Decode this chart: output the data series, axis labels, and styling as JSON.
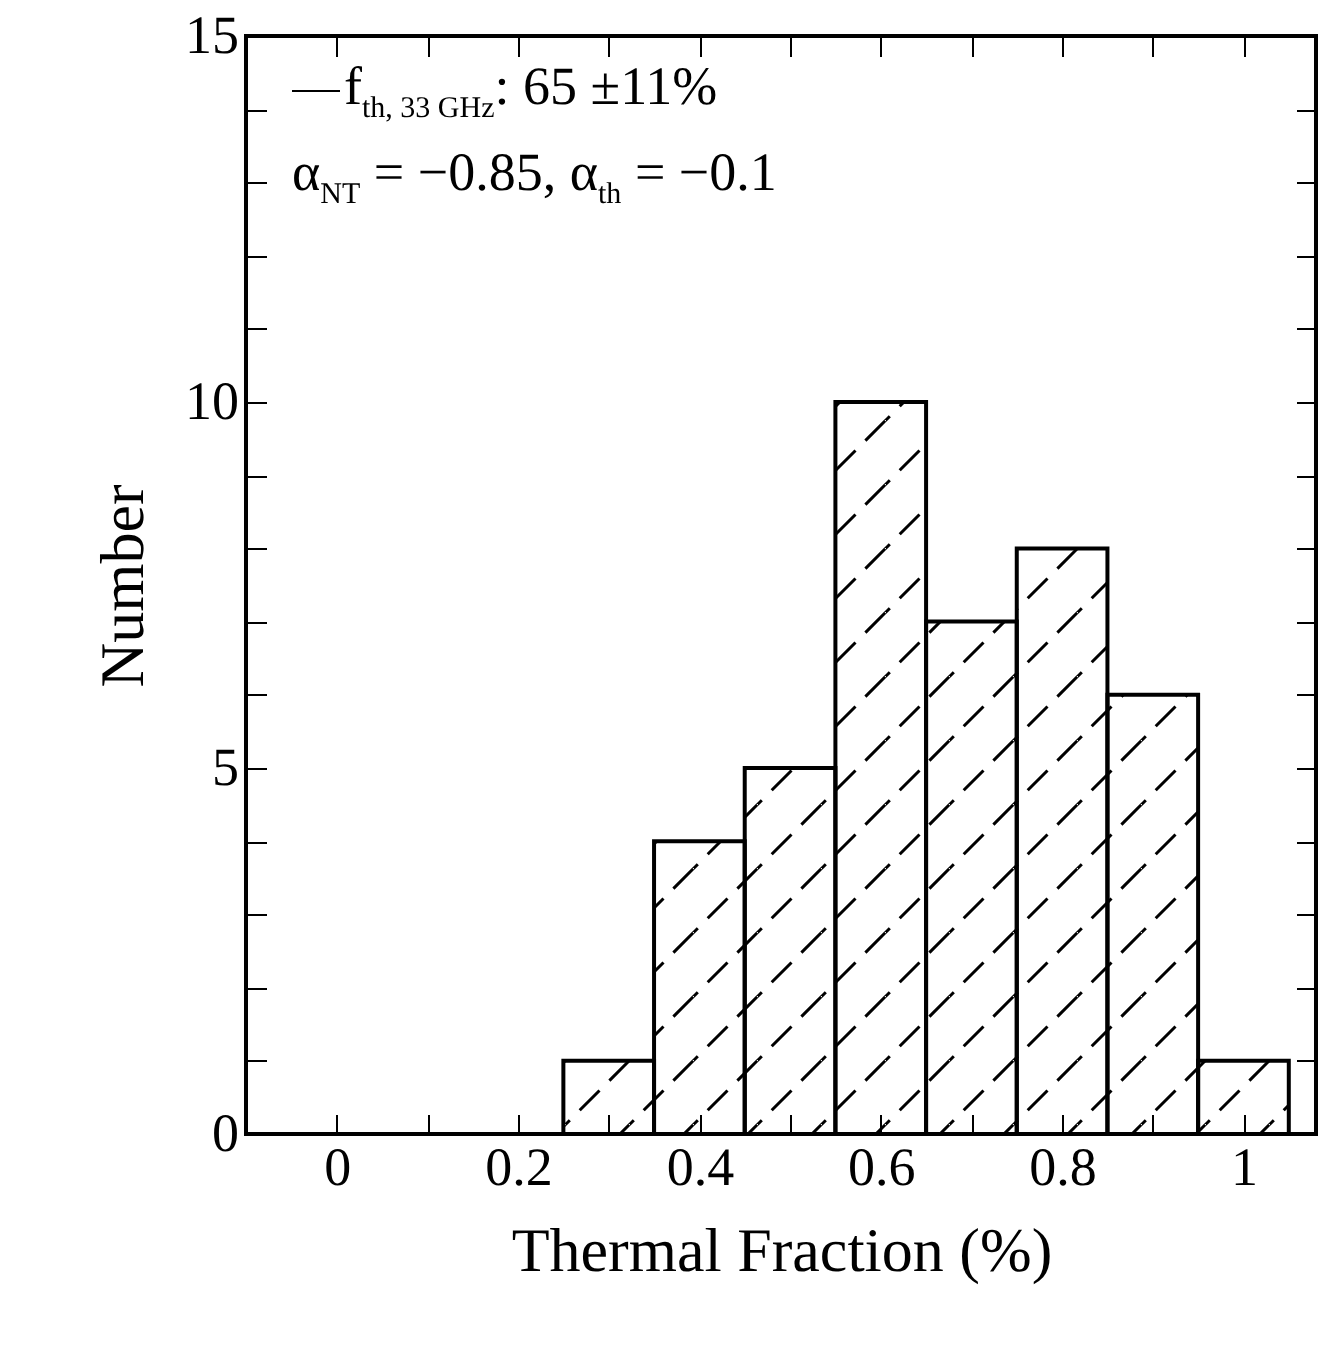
{
  "chart_data": {
    "type": "histogram",
    "xlabel": "Thermal Fraction (%)",
    "ylabel": "Number",
    "bins": [
      -0.05,
      0.05,
      0.15,
      0.25,
      0.35,
      0.45,
      0.55,
      0.65,
      0.75,
      0.85,
      0.95,
      1.05
    ],
    "values": [
      0,
      0,
      0,
      1,
      4,
      5,
      10,
      7,
      8,
      6,
      1
    ],
    "color": "#000000",
    "xlim": [
      -0.1,
      1.08
    ],
    "ylim": [
      0,
      15
    ],
    "xticks": [
      0,
      {
        "value": 0.1,
        "label": null
      },
      0.2,
      {
        "value": 0.3,
        "label": null
      },
      0.4,
      {
        "value": 0.5,
        "label": null
      },
      0.6,
      {
        "value": 0.7,
        "label": null
      },
      0.8,
      {
        "value": 0.9,
        "label": null
      },
      1
    ],
    "yticks": [
      0,
      {
        "value": 1,
        "label": null
      },
      {
        "value": 2,
        "label": null
      },
      {
        "value": 3,
        "label": null
      },
      {
        "value": 4,
        "label": null
      },
      5,
      {
        "value": 6,
        "label": null
      },
      {
        "value": 7,
        "label": null
      },
      {
        "value": 8,
        "label": null
      },
      {
        "value": 9,
        "label": null
      },
      10,
      {
        "value": 11,
        "label": null
      },
      {
        "value": 12,
        "label": null
      },
      {
        "value": 13,
        "label": null
      },
      {
        "value": 14,
        "label": null
      },
      15
    ],
    "annotations": [
      "f$_{th, 33 GHz}$: 65 ±11%",
      "α$_{NT}$ = −0.85, α$_{th}$ = −0.1"
    ]
  }
}
